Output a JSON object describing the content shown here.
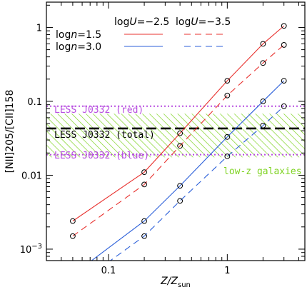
{
  "chart_data": {
    "type": "line",
    "xlabel_main": "Z/Z",
    "xlabel_sub": "sun",
    "ylabel": "[NII]205/[CII]158",
    "xscale": "log",
    "yscale": "log",
    "xlim": [
      0.03,
      4.5
    ],
    "ylim": [
      0.0007,
      2.2
    ],
    "x_ticks": [
      {
        "value": 0.1,
        "label": "0.1"
      },
      {
        "value": 1,
        "label": "1"
      }
    ],
    "y_ticks": [
      {
        "value": 1,
        "label": "1"
      },
      {
        "value": 0.1,
        "label": "0.1"
      },
      {
        "value": 0.01,
        "label": "0.01"
      },
      {
        "value": 0.001,
        "label_base": "10",
        "label_exp": "−3"
      }
    ],
    "legend": {
      "col_headers": [
        "logU=−2.5",
        "logU=−3.5"
      ],
      "col_prefix": "log",
      "col_var": "U",
      "col_values": [
        "=−2.5",
        "=−3.5"
      ],
      "row_prefix": "log",
      "row_var": "n",
      "row_values": [
        "=1.5",
        "=3.0"
      ]
    },
    "series": [
      {
        "color": "#e8322f",
        "dashed": false,
        "x": [
          0.05,
          0.2,
          0.4,
          1.0,
          2.0,
          3.0
        ],
        "y": [
          0.0024,
          0.011,
          0.037,
          0.19,
          0.6,
          1.05
        ]
      },
      {
        "color": "#e8322f",
        "dashed": true,
        "x": [
          0.05,
          0.2,
          0.4,
          1.0,
          2.0,
          3.0
        ],
        "y": [
          0.0015,
          0.0075,
          0.025,
          0.12,
          0.33,
          0.58
        ]
      },
      {
        "color": "#2b5fd9",
        "dashed": false,
        "x": [
          0.05,
          0.2,
          0.4,
          1.0,
          2.0,
          3.0
        ],
        "y": [
          0.00045,
          0.0024,
          0.0072,
          0.033,
          0.1,
          0.19
        ]
      },
      {
        "color": "#2b5fd9",
        "dashed": true,
        "x": [
          0.05,
          0.2,
          0.4,
          1.0,
          2.0,
          3.0
        ],
        "y": [
          0.0003,
          0.0015,
          0.0045,
          0.018,
          0.047,
          0.086
        ]
      }
    ],
    "hlines": [
      {
        "label": "LESS J0332 (red)",
        "y": 0.086,
        "color": "#b84ee0",
        "style": "dotted"
      },
      {
        "label": "LESS J0332 (total)",
        "y": 0.043,
        "color": "#000000",
        "style": "dashed"
      },
      {
        "label": "LESS J0332 (blue)",
        "y": 0.019,
        "color": "#b84ee0",
        "style": "dotted"
      }
    ],
    "band": {
      "label": "low-z galaxies",
      "y_low": 0.0175,
      "y_high": 0.068,
      "color": "#7ed321"
    }
  }
}
